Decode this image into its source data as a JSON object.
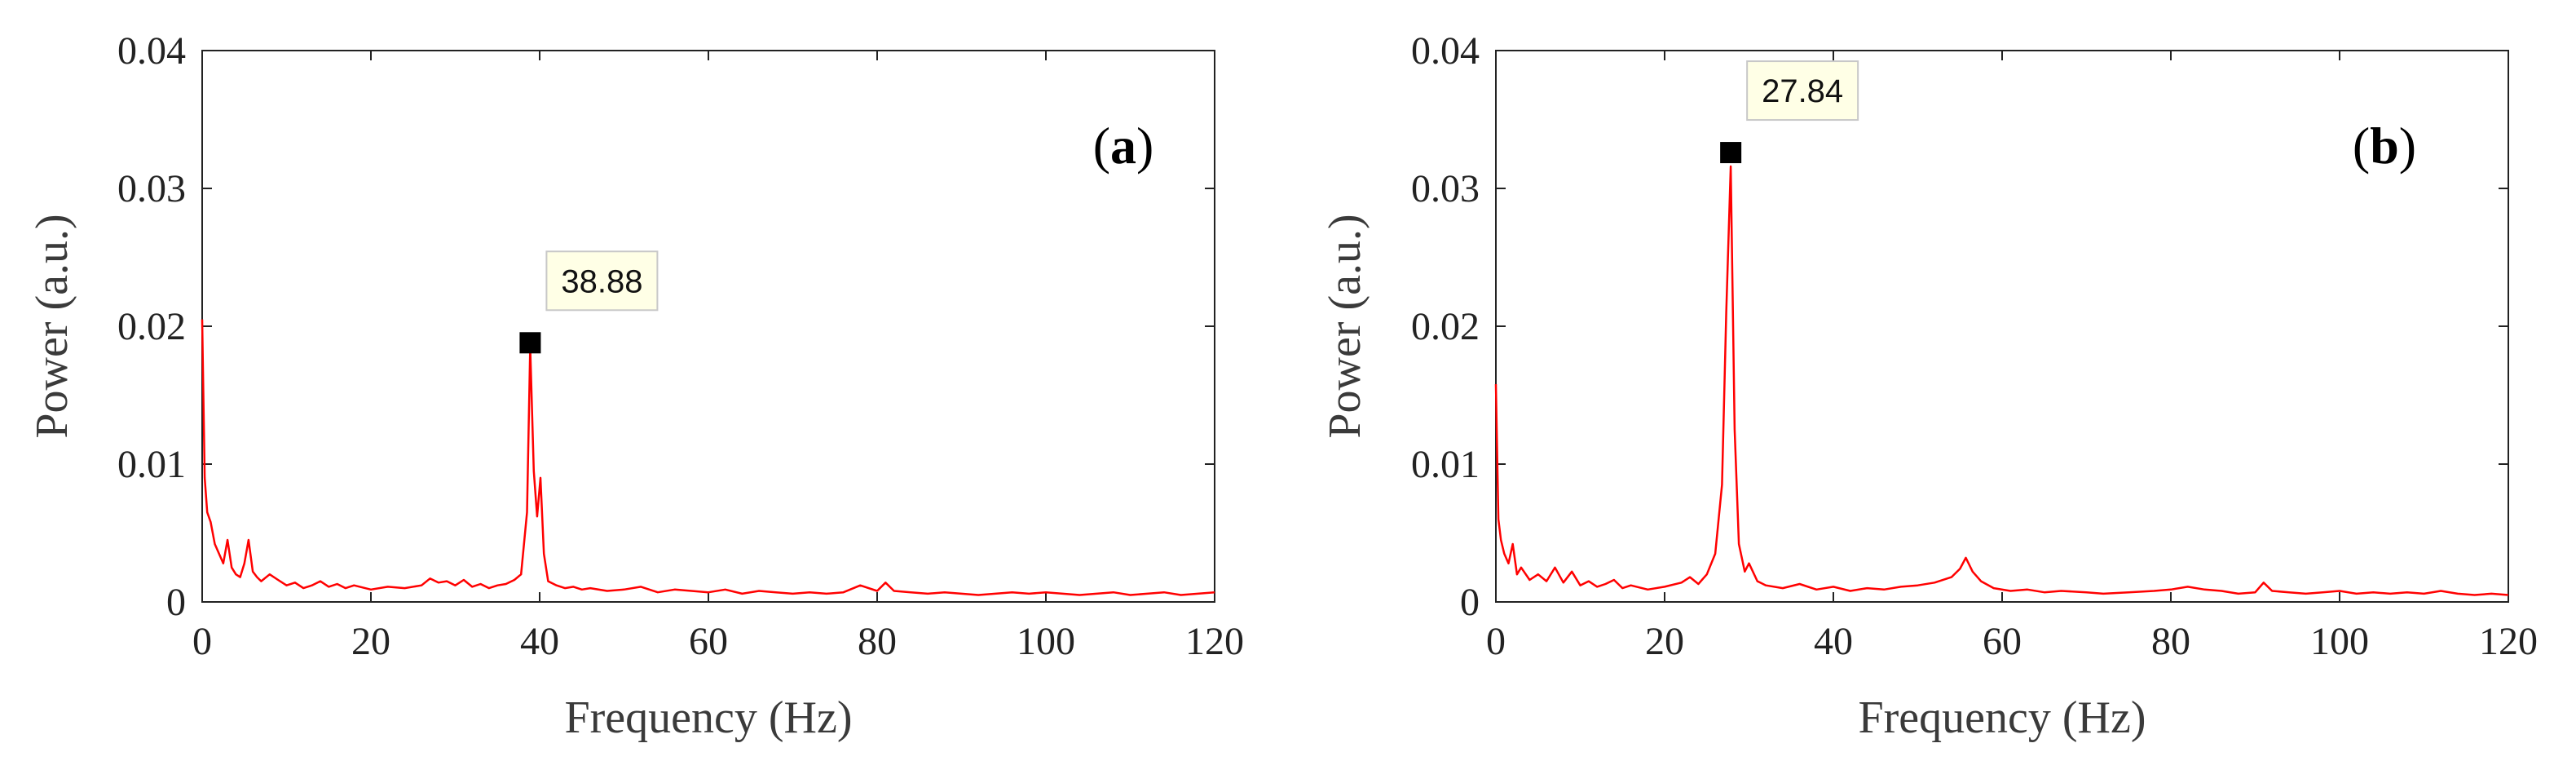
{
  "chart_data": [
    {
      "type": "line",
      "panel_label": "a",
      "xlabel": "Frequency (Hz)",
      "ylabel": "Power (a.u.)",
      "xlim": [
        0,
        120
      ],
      "ylim": [
        0,
        0.04
      ],
      "xticks": [
        0,
        20,
        40,
        60,
        80,
        100,
        120
      ],
      "yticks": [
        0,
        0.01,
        0.02,
        0.03,
        0.04
      ],
      "ytick_labels": [
        "0",
        "0.01",
        "0.02",
        "0.03",
        "0.04"
      ],
      "grid": false,
      "line_color": "#ff0000",
      "marker": {
        "x": 38.88,
        "y": 0.0188,
        "label": "38.88"
      },
      "series": [
        {
          "x": [
            0,
            0.3,
            0.6,
            1,
            1.5,
            2,
            2.5,
            3,
            3.5,
            4,
            4.5,
            5,
            5.5,
            6,
            6.5,
            7,
            8,
            9,
            10,
            11,
            12,
            13,
            14,
            15,
            16,
            17,
            18,
            20,
            22,
            24,
            26,
            27,
            28,
            29,
            30,
            31,
            32,
            33,
            34,
            35,
            36,
            37,
            37.8,
            38.5,
            38.88,
            39.3,
            39.7,
            40.1,
            40.5,
            41,
            42,
            43,
            44,
            45,
            46,
            48,
            50,
            52,
            54,
            56,
            58,
            60,
            62,
            64,
            66,
            68,
            70,
            72,
            74,
            76,
            78,
            80,
            81,
            82,
            84,
            86,
            88,
            90,
            92,
            94,
            96,
            98,
            100,
            102,
            104,
            106,
            108,
            110,
            112,
            114,
            116,
            118,
            120
          ],
          "y": [
            0.0205,
            0.009,
            0.0065,
            0.0058,
            0.0042,
            0.0035,
            0.0028,
            0.0045,
            0.0025,
            0.002,
            0.0018,
            0.0028,
            0.0045,
            0.0022,
            0.0018,
            0.0015,
            0.002,
            0.0016,
            0.0012,
            0.0014,
            0.001,
            0.0012,
            0.0015,
            0.0011,
            0.0013,
            0.001,
            0.0012,
            0.0009,
            0.0011,
            0.001,
            0.0012,
            0.0017,
            0.0014,
            0.0015,
            0.0012,
            0.0016,
            0.0011,
            0.0013,
            0.001,
            0.0012,
            0.0013,
            0.0016,
            0.002,
            0.0065,
            0.0185,
            0.0095,
            0.0062,
            0.009,
            0.0035,
            0.0015,
            0.0012,
            0.001,
            0.0011,
            0.0009,
            0.001,
            0.0008,
            0.0009,
            0.0011,
            0.0007,
            0.0009,
            0.0008,
            0.0007,
            0.0009,
            0.0006,
            0.0008,
            0.0007,
            0.0006,
            0.0007,
            0.0006,
            0.0007,
            0.0012,
            0.0008,
            0.0014,
            0.0008,
            0.0007,
            0.0006,
            0.0007,
            0.0006,
            0.0005,
            0.0006,
            0.0007,
            0.0006,
            0.0007,
            0.0006,
            0.0005,
            0.0006,
            0.0007,
            0.0005,
            0.0006,
            0.0007,
            0.0005,
            0.0006,
            0.0007
          ]
        }
      ]
    },
    {
      "type": "line",
      "panel_label": "b",
      "xlabel": "Frequency (Hz)",
      "ylabel": "Power (a.u.)",
      "xlim": [
        0,
        120
      ],
      "ylim": [
        0,
        0.04
      ],
      "xticks": [
        0,
        20,
        40,
        60,
        80,
        100,
        120
      ],
      "yticks": [
        0,
        0.01,
        0.02,
        0.03,
        0.04
      ],
      "ytick_labels": [
        "0",
        "0.01",
        "0.02",
        "0.03",
        "0.04"
      ],
      "grid": false,
      "line_color": "#ff0000",
      "marker": {
        "x": 27.84,
        "y": 0.0326,
        "label": "27.84"
      },
      "series": [
        {
          "x": [
            0,
            0.3,
            0.6,
            1,
            1.5,
            2,
            2.5,
            3,
            4,
            5,
            6,
            7,
            8,
            9,
            10,
            11,
            12,
            13,
            14,
            15,
            16,
            18,
            20,
            22,
            23,
            24,
            25,
            26,
            26.8,
            27.3,
            27.84,
            28.3,
            28.8,
            29.5,
            30,
            31,
            32,
            34,
            36,
            38,
            40,
            42,
            44,
            46,
            48,
            50,
            52,
            54,
            55,
            55.7,
            56.5,
            57.5,
            59,
            61,
            63,
            65,
            67,
            70,
            72,
            75,
            78,
            80,
            82,
            84,
            86,
            88,
            90,
            91,
            92,
            94,
            96,
            98,
            100,
            102,
            104,
            106,
            108,
            110,
            112,
            114,
            116,
            118,
            120
          ],
          "y": [
            0.0158,
            0.006,
            0.0045,
            0.0035,
            0.0028,
            0.0042,
            0.002,
            0.0025,
            0.0016,
            0.002,
            0.0015,
            0.0025,
            0.0014,
            0.0022,
            0.0012,
            0.0015,
            0.0011,
            0.0013,
            0.0016,
            0.001,
            0.0012,
            0.0009,
            0.0011,
            0.0014,
            0.0018,
            0.0013,
            0.002,
            0.0035,
            0.0085,
            0.021,
            0.0316,
            0.0125,
            0.0042,
            0.0022,
            0.0028,
            0.0015,
            0.0012,
            0.001,
            0.0013,
            0.0009,
            0.0011,
            0.0008,
            0.001,
            0.0009,
            0.0011,
            0.0012,
            0.0014,
            0.0018,
            0.0024,
            0.0032,
            0.0022,
            0.0015,
            0.001,
            0.0008,
            0.0009,
            0.0007,
            0.0008,
            0.0007,
            0.0006,
            0.0007,
            0.0008,
            0.0009,
            0.0011,
            0.0009,
            0.0008,
            0.0006,
            0.0007,
            0.0014,
            0.0008,
            0.0007,
            0.0006,
            0.0007,
            0.0008,
            0.0006,
            0.0007,
            0.0006,
            0.0007,
            0.0006,
            0.0008,
            0.0006,
            0.0005,
            0.0006,
            0.0005
          ]
        }
      ]
    }
  ]
}
